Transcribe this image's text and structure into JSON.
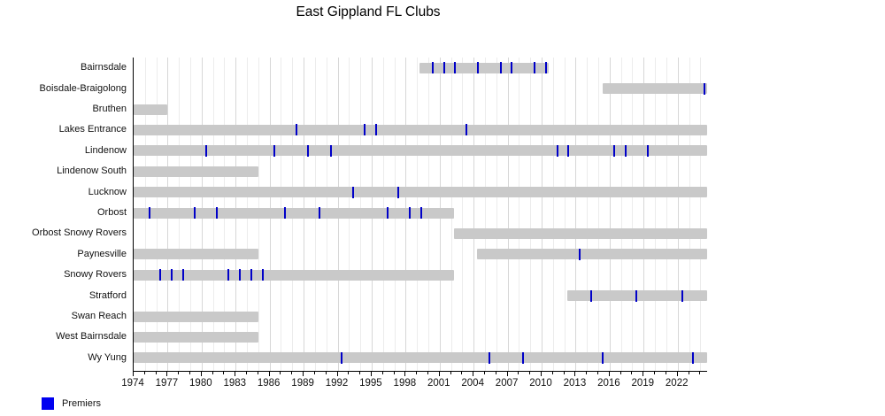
{
  "title": "East Gippland FL Clubs",
  "legend": {
    "label": "Premiers",
    "swatch_color": "#0000f0"
  },
  "chart_data": {
    "type": "bar",
    "subtype": "timeline-gantt",
    "title": "East Gippland FL Clubs",
    "orientation": "horizontal",
    "x_domain": [
      1974,
      2024.6
    ],
    "x_major_ticks": [
      1974,
      1977,
      1980,
      1983,
      1986,
      1989,
      1992,
      1995,
      1998,
      2001,
      2004,
      2007,
      2010,
      2013,
      2016,
      2019,
      2022
    ],
    "x_minor_tick_step": 1,
    "grid": true,
    "legend_position": "bottom-left",
    "colors": {
      "bar": "#c9c9c9",
      "premier": "#0000c8",
      "grid_minor": "#ececec",
      "grid_major": "#d7d7d7",
      "axis": "#000000"
    },
    "clubs": [
      {
        "name": "Bairnsdale",
        "spans": [
          {
            "from": 1999.2,
            "to": 2010.6
          }
        ],
        "premiers": [
          2000,
          2001,
          2002,
          2004,
          2006,
          2007,
          2009,
          2010
        ]
      },
      {
        "name": "Boisdale-Braigolong",
        "spans": [
          {
            "from": 2015.4,
            "to": 2024.6
          }
        ],
        "premiers": [
          2024
        ]
      },
      {
        "name": "Bruthen",
        "spans": [
          {
            "from": 1974,
            "to": 1977
          }
        ],
        "premiers": []
      },
      {
        "name": "Lakes Entrance",
        "spans": [
          {
            "from": 1974,
            "to": 2024.6
          }
        ],
        "premiers": [
          1988,
          1994,
          1995,
          2003
        ]
      },
      {
        "name": "Lindenow",
        "spans": [
          {
            "from": 1974,
            "to": 2024.6
          }
        ],
        "premiers": [
          1980,
          1986,
          1989,
          1991,
          2011,
          2012,
          2016,
          2017,
          2019
        ]
      },
      {
        "name": "Lindenow South",
        "spans": [
          {
            "from": 1974,
            "to": 1985
          }
        ],
        "premiers": []
      },
      {
        "name": "Lucknow",
        "spans": [
          {
            "from": 1974,
            "to": 2024.6
          }
        ],
        "premiers": [
          1993,
          1997
        ]
      },
      {
        "name": "Orbost",
        "spans": [
          {
            "from": 1974,
            "to": 2002.3
          }
        ],
        "premiers": [
          1975,
          1979,
          1981,
          1987,
          1990,
          1996,
          1998,
          1999
        ]
      },
      {
        "name": "Orbost Snowy Rovers",
        "spans": [
          {
            "from": 2002.3,
            "to": 2024.6
          }
        ],
        "premiers": []
      },
      {
        "name": "Paynesville",
        "spans": [
          {
            "from": 1974,
            "to": 1985
          },
          {
            "from": 2004.3,
            "to": 2024.6
          }
        ],
        "premiers": [
          2013
        ]
      },
      {
        "name": "Snowy Rovers",
        "spans": [
          {
            "from": 1974,
            "to": 2002.3
          }
        ],
        "premiers": [
          1976,
          1977,
          1978,
          1982,
          1983,
          1984,
          1985
        ]
      },
      {
        "name": "Stratford",
        "spans": [
          {
            "from": 2012.3,
            "to": 2024.6
          }
        ],
        "premiers": [
          2014,
          2018,
          2022
        ]
      },
      {
        "name": "Swan Reach",
        "spans": [
          {
            "from": 1974,
            "to": 1985
          }
        ],
        "premiers": []
      },
      {
        "name": "West Bairnsdale",
        "spans": [
          {
            "from": 1974,
            "to": 1985
          }
        ],
        "premiers": []
      },
      {
        "name": "Wy Yung",
        "spans": [
          {
            "from": 1974,
            "to": 2024.6
          }
        ],
        "premiers": [
          1992,
          2005,
          2008,
          2015,
          2023
        ]
      }
    ]
  }
}
